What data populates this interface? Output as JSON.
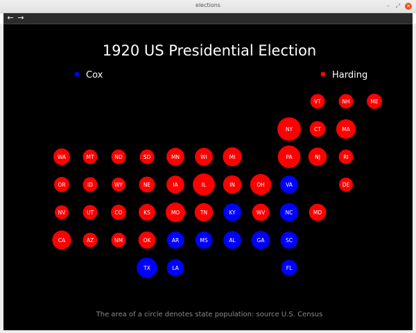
{
  "window": {
    "title": "elections"
  },
  "toolbar": {
    "back_icon": "arrow-left-icon",
    "forward_icon": "arrow-right-icon",
    "back_glyph": "←",
    "forward_glyph": "→"
  },
  "window_controls": {
    "minimize": "–",
    "maximize": "⤢",
    "close": "✕"
  },
  "chart_data": {
    "type": "scatter",
    "title": "1920 US Presidential Election",
    "caption": "The area of a circle denotes state population: source U.S. Census",
    "colors": {
      "Cox": "#0000ff",
      "Harding": "#ff0000"
    },
    "legend": [
      {
        "name": "Cox",
        "color": "#0000ff",
        "placement": "top-left"
      },
      {
        "name": "Harding",
        "color": "#ff0000",
        "placement": "top-right"
      }
    ],
    "states": [
      {
        "abbr": "VT",
        "col": 11,
        "row": 0,
        "winner": "Harding",
        "size": 1
      },
      {
        "abbr": "NH",
        "col": 12,
        "row": 0,
        "winner": "Harding",
        "size": 1
      },
      {
        "abbr": "ME",
        "col": 13,
        "row": 0,
        "winner": "Harding",
        "size": 1.1
      },
      {
        "abbr": "NY",
        "col": 10,
        "row": 1,
        "winner": "Harding",
        "size": 2.6
      },
      {
        "abbr": "CT",
        "col": 11,
        "row": 1,
        "winner": "Harding",
        "size": 1.2
      },
      {
        "abbr": "MA",
        "col": 12,
        "row": 1,
        "winner": "Harding",
        "size": 1.8
      },
      {
        "abbr": "WA",
        "col": 2,
        "row": 2,
        "winner": "Harding",
        "size": 1.3
      },
      {
        "abbr": "MT",
        "col": 3,
        "row": 2,
        "winner": "Harding",
        "size": 1
      },
      {
        "abbr": "ND",
        "col": 4,
        "row": 2,
        "winner": "Harding",
        "size": 1
      },
      {
        "abbr": "SD",
        "col": 5,
        "row": 2,
        "winner": "Harding",
        "size": 1
      },
      {
        "abbr": "MN",
        "col": 6,
        "row": 2,
        "winner": "Harding",
        "size": 1.5
      },
      {
        "abbr": "WI",
        "col": 7,
        "row": 2,
        "winner": "Harding",
        "size": 1.5
      },
      {
        "abbr": "MI",
        "col": 8,
        "row": 2,
        "winner": "Harding",
        "size": 1.7
      },
      {
        "abbr": "PA",
        "col": 10,
        "row": 2,
        "winner": "Harding",
        "size": 2.4
      },
      {
        "abbr": "NJ",
        "col": 11,
        "row": 2,
        "winner": "Harding",
        "size": 1.6
      },
      {
        "abbr": "RI",
        "col": 12,
        "row": 2,
        "winner": "Harding",
        "size": 1
      },
      {
        "abbr": "OR",
        "col": 2,
        "row": 3,
        "winner": "Harding",
        "size": 1.1
      },
      {
        "abbr": "ID",
        "col": 3,
        "row": 3,
        "winner": "Harding",
        "size": 1
      },
      {
        "abbr": "WY",
        "col": 4,
        "row": 3,
        "winner": "Harding",
        "size": 0.9
      },
      {
        "abbr": "NE",
        "col": 5,
        "row": 3,
        "winner": "Harding",
        "size": 1.2
      },
      {
        "abbr": "IA",
        "col": 6,
        "row": 3,
        "winner": "Harding",
        "size": 1.5
      },
      {
        "abbr": "IL",
        "col": 7,
        "row": 3,
        "winner": "Harding",
        "size": 2.3
      },
      {
        "abbr": "IN",
        "col": 8,
        "row": 3,
        "winner": "Harding",
        "size": 1.6
      },
      {
        "abbr": "OH",
        "col": 9,
        "row": 3,
        "winner": "Harding",
        "size": 2.1
      },
      {
        "abbr": "VA",
        "col": 10,
        "row": 3,
        "winner": "Cox",
        "size": 1.5
      },
      {
        "abbr": "DE",
        "col": 12,
        "row": 3,
        "winner": "Harding",
        "size": 0.9
      },
      {
        "abbr": "NV",
        "col": 2,
        "row": 4,
        "winner": "Harding",
        "size": 0.9
      },
      {
        "abbr": "UT",
        "col": 3,
        "row": 4,
        "winner": "Harding",
        "size": 1
      },
      {
        "abbr": "CO",
        "col": 4,
        "row": 4,
        "winner": "Harding",
        "size": 1.1
      },
      {
        "abbr": "KS",
        "col": 5,
        "row": 4,
        "winner": "Harding",
        "size": 1.3
      },
      {
        "abbr": "MO",
        "col": 6,
        "row": 4,
        "winner": "Harding",
        "size": 1.8
      },
      {
        "abbr": "TN",
        "col": 7,
        "row": 4,
        "winner": "Harding",
        "size": 1.6
      },
      {
        "abbr": "KY",
        "col": 8,
        "row": 4,
        "winner": "Cox",
        "size": 1.5
      },
      {
        "abbr": "WV",
        "col": 9,
        "row": 4,
        "winner": "Harding",
        "size": 1.4
      },
      {
        "abbr": "NC",
        "col": 10,
        "row": 4,
        "winner": "Cox",
        "size": 1.6
      },
      {
        "abbr": "MD",
        "col": 11,
        "row": 4,
        "winner": "Harding",
        "size": 1.4
      },
      {
        "abbr": "CA",
        "col": 2,
        "row": 5,
        "winner": "Harding",
        "size": 1.7
      },
      {
        "abbr": "AZ",
        "col": 3,
        "row": 5,
        "winner": "Harding",
        "size": 1
      },
      {
        "abbr": "NM",
        "col": 4,
        "row": 5,
        "winner": "Harding",
        "size": 1
      },
      {
        "abbr": "OK",
        "col": 5,
        "row": 5,
        "winner": "Harding",
        "size": 1.4
      },
      {
        "abbr": "AR",
        "col": 6,
        "row": 5,
        "winner": "Cox",
        "size": 1.4
      },
      {
        "abbr": "MS",
        "col": 7,
        "row": 5,
        "winner": "Cox",
        "size": 1.4
      },
      {
        "abbr": "AL",
        "col": 8,
        "row": 5,
        "winner": "Cox",
        "size": 1.5
      },
      {
        "abbr": "GA",
        "col": 9,
        "row": 5,
        "winner": "Cox",
        "size": 1.6
      },
      {
        "abbr": "SC",
        "col": 10,
        "row": 5,
        "winner": "Cox",
        "size": 1.4
      },
      {
        "abbr": "TX",
        "col": 5,
        "row": 6,
        "winner": "Cox",
        "size": 2.0
      },
      {
        "abbr": "LA",
        "col": 6,
        "row": 6,
        "winner": "Cox",
        "size": 1.4
      },
      {
        "abbr": "FL",
        "col": 10,
        "row": 6,
        "winner": "Cox",
        "size": 1.2
      }
    ]
  }
}
